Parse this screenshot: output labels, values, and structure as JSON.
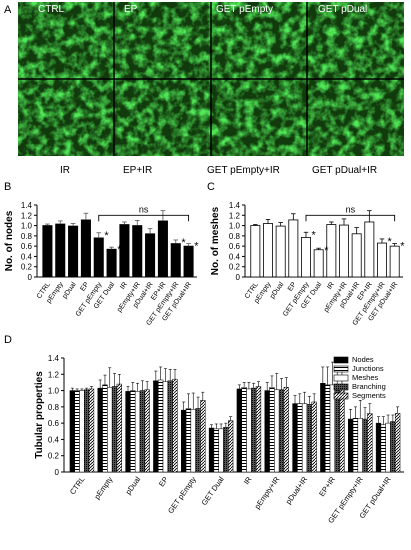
{
  "panels": {
    "A": {
      "letter": "A",
      "top_labels": [
        "CTRL",
        "EP",
        "GET pEmpty",
        "GET pDual"
      ],
      "bottom_labels": [
        "IR",
        "EP+IR",
        "GET pEmpty+IR",
        "GET pDual+IR"
      ]
    },
    "B": {
      "letter": "B"
    },
    "C": {
      "letter": "C"
    },
    "D": {
      "letter": "D"
    }
  },
  "colors": {
    "micro_green": "#2fd12b",
    "micro_dark": "#0b1a05",
    "bar_black": "#000000",
    "bar_white": "#ffffff"
  },
  "chart_data": [
    {
      "id": "B",
      "type": "bar",
      "ylabel": "No. of nodes",
      "ylim": [
        0,
        1.4
      ],
      "yticks": [
        "0",
        "0.2",
        "0.4",
        "0.6",
        "0.8",
        "1.0",
        "1.2",
        "1.4"
      ],
      "categories": [
        "CTRL",
        "pEmpty",
        "pDual",
        "EP",
        "GET pEmpty",
        "GET Dual",
        "IR",
        "pEmpty+IR",
        "pDual+IR",
        "EP+IR",
        "GET pEmpty+IR",
        "GET pDual+IR"
      ],
      "values": [
        1.0,
        1.03,
        0.99,
        1.11,
        0.76,
        0.54,
        1.02,
        1.0,
        0.84,
        1.09,
        0.65,
        0.6
      ],
      "errors": [
        0.03,
        0.06,
        0.05,
        0.13,
        0.1,
        0.04,
        0.05,
        0.1,
        0.1,
        0.2,
        0.07,
        0.05
      ],
      "bar_color": "#000000",
      "significance_marks": [
        {
          "category": "GET pEmpty",
          "text": "*"
        },
        {
          "category": "GET Dual",
          "text": "*"
        },
        {
          "category": "GET pEmpty+IR",
          "text": "*"
        },
        {
          "category": "GET pDual+IR",
          "text": "*"
        }
      ],
      "bracket": {
        "from": "GET pEmpty",
        "to": "GET pDual+IR",
        "label": "ns",
        "y": 1.2
      }
    },
    {
      "id": "C",
      "type": "bar",
      "ylabel": "No. of meshes",
      "ylim": [
        0,
        1.4
      ],
      "yticks": [
        "0",
        "0.2",
        "0.4",
        "0.6",
        "0.8",
        "1.0",
        "1.2",
        "1.4"
      ],
      "categories": [
        "CTRL",
        "pEmpty",
        "pDual",
        "EP",
        "GET pEmpty",
        "GET Dual",
        "IR",
        "pEmpty+IR",
        "pDual+IR",
        "EP+IR",
        "GET pEmpty+IR",
        "GET pDual+IR"
      ],
      "values": [
        1.0,
        1.04,
        0.99,
        1.11,
        0.77,
        0.53,
        1.02,
        1.01,
        0.84,
        1.07,
        0.66,
        0.6
      ],
      "errors": [
        0.02,
        0.08,
        0.07,
        0.12,
        0.1,
        0.03,
        0.05,
        0.12,
        0.12,
        0.22,
        0.08,
        0.05
      ],
      "bar_color": "#ffffff",
      "significance_marks": [
        {
          "category": "GET pEmpty",
          "text": "*"
        },
        {
          "category": "GET Dual",
          "text": "*"
        },
        {
          "category": "GET pEmpty+IR",
          "text": "*"
        },
        {
          "category": "GET pDual+IR",
          "text": "*"
        }
      ],
      "bracket": {
        "from": "GET pEmpty",
        "to": "GET pDual+IR",
        "label": "ns",
        "y": 1.2
      }
    },
    {
      "id": "D",
      "type": "bar",
      "ylabel": "Tubular properties",
      "ylim": [
        0,
        1.4
      ],
      "yticks": [
        "0",
        "0.2",
        "0.4",
        "0.6",
        "0.8",
        "1.0",
        "1.2",
        "1.4"
      ],
      "legend_position": "top-right",
      "categories": [
        "CTRL",
        "pEmpty",
        "pDual",
        "EP",
        "GET pEmpty",
        "GET Dual",
        "IR",
        "pEmpty+IR",
        "pDual+IR",
        "EP+IR",
        "GET pEmpty+IR",
        "GET pDual+IR"
      ],
      "series": [
        {
          "name": "Nodes",
          "pattern": "solid",
          "values": [
            1.0,
            1.03,
            0.99,
            1.12,
            0.76,
            0.54,
            1.02,
            1.0,
            0.84,
            1.09,
            0.65,
            0.6
          ],
          "errors": [
            0.03,
            0.1,
            0.06,
            0.12,
            0.1,
            0.04,
            0.05,
            0.1,
            0.1,
            0.2,
            0.12,
            0.08
          ]
        },
        {
          "name": "Junctions",
          "pattern": "hatch",
          "values": [
            1.0,
            1.07,
            1.0,
            1.13,
            0.78,
            0.53,
            1.04,
            1.04,
            0.84,
            1.07,
            0.66,
            0.58
          ],
          "errors": [
            0.02,
            0.12,
            0.1,
            0.16,
            0.18,
            0.06,
            0.06,
            0.14,
            0.12,
            0.22,
            0.14,
            0.1
          ]
        },
        {
          "name": "Meshes",
          "pattern": "open",
          "values": [
            1.0,
            1.04,
            0.99,
            1.11,
            0.77,
            0.53,
            1.02,
            1.01,
            0.84,
            1.07,
            0.66,
            0.6
          ],
          "errors": [
            0.02,
            0.24,
            0.1,
            0.16,
            0.2,
            0.06,
            0.08,
            0.2,
            0.14,
            0.28,
            0.22,
            0.1
          ]
        },
        {
          "name": "Branching",
          "pattern": "dense",
          "values": [
            1.01,
            1.05,
            1.0,
            1.12,
            0.78,
            0.55,
            1.03,
            1.01,
            0.83,
            1.05,
            0.65,
            0.62
          ],
          "errors": [
            0.02,
            0.16,
            0.12,
            0.14,
            0.14,
            0.05,
            0.06,
            0.14,
            0.1,
            0.2,
            0.14,
            0.08
          ]
        },
        {
          "name": "Segments",
          "pattern": "diag",
          "values": [
            1.02,
            1.08,
            1.01,
            1.14,
            0.88,
            0.63,
            1.05,
            1.04,
            0.86,
            1.05,
            0.72,
            0.72
          ],
          "errors": [
            0.03,
            0.12,
            0.1,
            0.12,
            0.1,
            0.05,
            0.06,
            0.12,
            0.1,
            0.2,
            0.12,
            0.08
          ]
        }
      ]
    }
  ]
}
